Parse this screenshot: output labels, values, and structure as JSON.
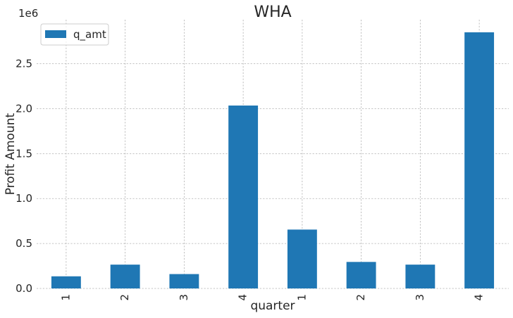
{
  "chart_data": {
    "type": "bar",
    "title": "WHA",
    "xlabel": "quarter",
    "ylabel": "Profit Amount",
    "y_offset_text": "1e6",
    "categories": [
      "1",
      "2",
      "3",
      "4",
      "1",
      "2",
      "3",
      "4"
    ],
    "series": [
      {
        "name": "q_amt",
        "color": "#1f77b4",
        "values": [
          135000,
          265000,
          160000,
          2035000,
          655000,
          295000,
          265000,
          2850000
        ]
      }
    ],
    "y_ticks": [
      0.0,
      0.5,
      1.0,
      1.5,
      2.0,
      2.5
    ],
    "y_tick_labels": [
      "0.0",
      "0.5",
      "1.0",
      "1.5",
      "2.0",
      "2.5"
    ],
    "ylim": [
      0,
      2990000
    ],
    "grid": true,
    "legend_position": "top-left"
  }
}
